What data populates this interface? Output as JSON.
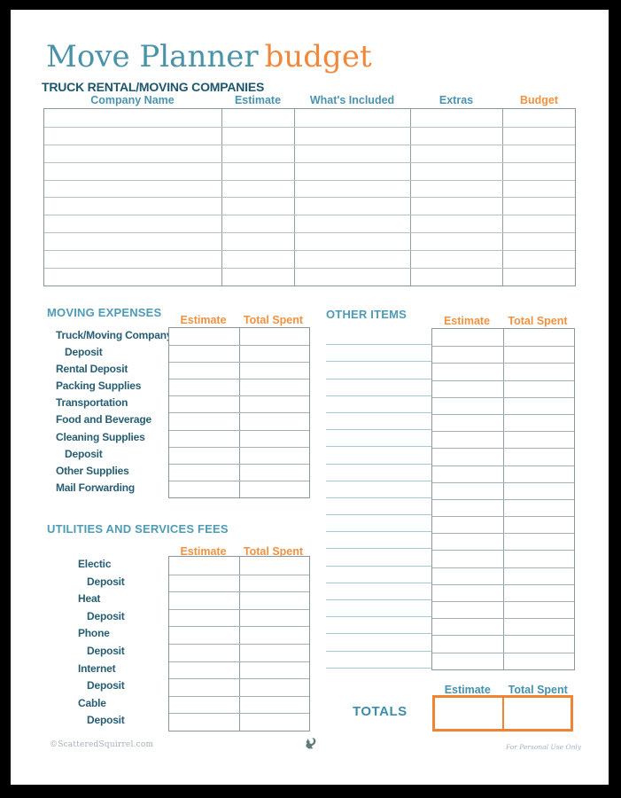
{
  "title": {
    "main": "Move Planner",
    "accent": "budget"
  },
  "truck_table": {
    "heading": "TRUCK RENTAL/MOVING COMPANIES",
    "columns": [
      "Company Name",
      "Estimate",
      "What's Included",
      "Extras",
      "Budget"
    ],
    "row_count": 10
  },
  "moving_expenses": {
    "heading": "MOVING EXPENSES",
    "estimate_header": "Estimate",
    "total_spent_header": "Total Spent",
    "rows": [
      {
        "label": "Truck/Moving Company",
        "indent": false
      },
      {
        "label": "Deposit",
        "indent": true
      },
      {
        "label": "Rental Deposit",
        "indent": false
      },
      {
        "label": "Packing Supplies",
        "indent": false
      },
      {
        "label": "Transportation",
        "indent": false
      },
      {
        "label": "Food and Beverage",
        "indent": false
      },
      {
        "label": "Cleaning Supplies",
        "indent": false
      },
      {
        "label": "Deposit",
        "indent": true
      },
      {
        "label": "Other Supplies",
        "indent": false
      },
      {
        "label": "Mail Forwarding",
        "indent": false
      }
    ]
  },
  "utilities": {
    "heading": "UTILITIES AND SERVICES FEES",
    "estimate_header": "Estimate",
    "total_spent_header": "Total Spent",
    "rows": [
      {
        "label": "Electic",
        "indent": false
      },
      {
        "label": "Deposit",
        "indent": true
      },
      {
        "label": "Heat",
        "indent": false
      },
      {
        "label": "Deposit",
        "indent": true
      },
      {
        "label": "Phone",
        "indent": false
      },
      {
        "label": "Deposit",
        "indent": true
      },
      {
        "label": "Internet",
        "indent": false
      },
      {
        "label": "Deposit",
        "indent": true
      },
      {
        "label": "Cable",
        "indent": false
      },
      {
        "label": "Deposit",
        "indent": true
      }
    ]
  },
  "other_items": {
    "heading": "OTHER ITEMS",
    "estimate_header": "Estimate",
    "total_spent_header": "Total Spent",
    "row_count": 20
  },
  "totals": {
    "heading": "TOTALS",
    "estimate_header": "Estimate",
    "total_spent_header": "Total Spent"
  },
  "footer": {
    "copyright": "©ScatteredSquirrel.com",
    "license": "For Personal Use Only",
    "squirrel_icon": "squirrel-icon"
  },
  "colors": {
    "title_teal": "#4A92A8",
    "title_orange": "#F0883B",
    "heading_dark": "#1E566E",
    "section_teal": "#4E9BB5",
    "label_teal": "#275E74",
    "column_header_orange": "#F0923F",
    "column_header_teal": "#4A93AF",
    "totals_border_orange": "#EF8432",
    "write_line_teal": "#A5CBD9",
    "grid_outer": "#8A979C",
    "grid_inner": "#B6C1C6"
  }
}
